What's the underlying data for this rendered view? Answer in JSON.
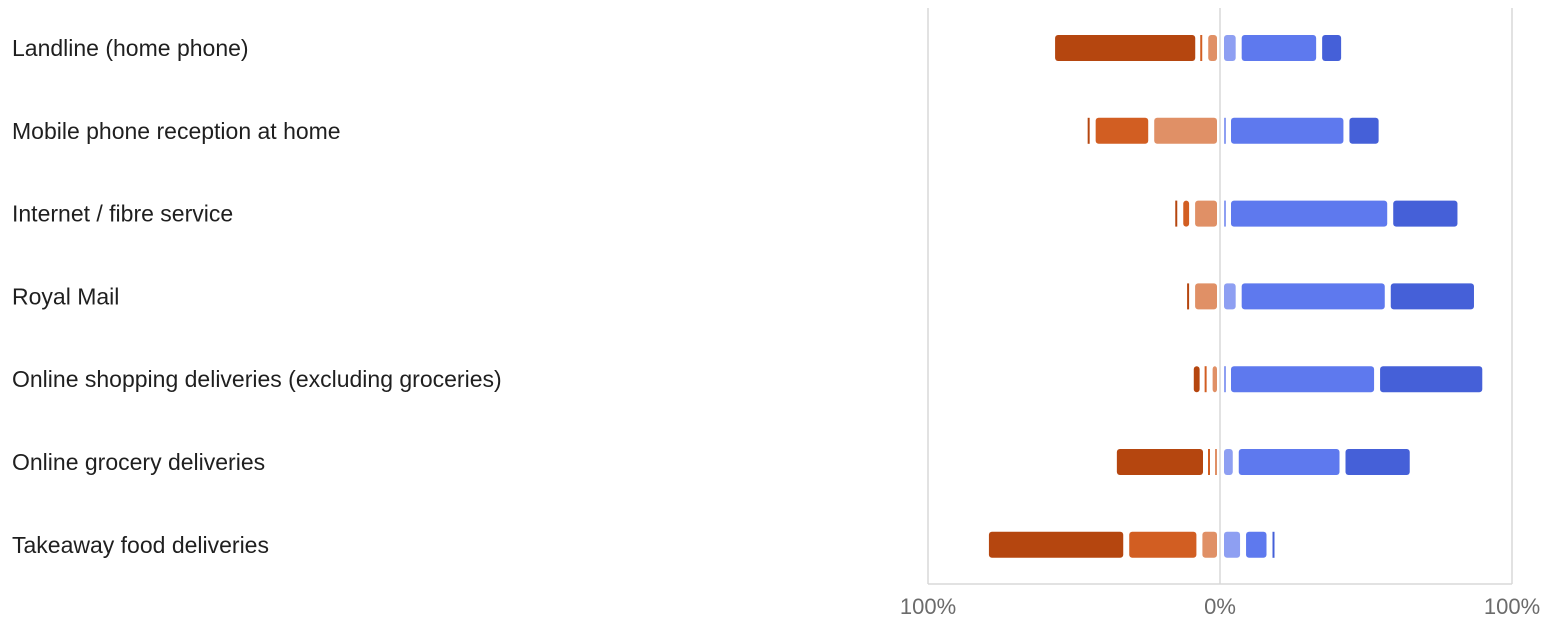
{
  "chart_data": {
    "type": "bar",
    "subtype": "diverging-stacked-horizontal",
    "title": "",
    "xlabel": "",
    "ylabel": "",
    "xlim": [
      -100,
      100
    ],
    "x_ticks": [
      {
        "value": -100,
        "label": "100%"
      },
      {
        "value": 0,
        "label": "0%"
      },
      {
        "value": 100,
        "label": "100%"
      }
    ],
    "grid": false,
    "legend": "none",
    "categories": [
      "Landline (home phone)",
      "Mobile phone reception at home",
      "Internet / fibre service",
      "Royal Mail",
      "Online shopping deliveries (excluding groceries)",
      "Online grocery deliveries",
      "Takeaway food deliveries"
    ],
    "negative_series": [
      {
        "color": "#b5460f",
        "values": [
          48,
          0.5,
          1,
          0.5,
          2,
          29.5,
          46
        ]
      },
      {
        "color": "#d25e22",
        "values": [
          0.5,
          18,
          2,
          0,
          0.5,
          0.5,
          23
        ]
      },
      {
        "color": "#e09066",
        "values": [
          3,
          21.5,
          7.5,
          7.5,
          1.5,
          1,
          5
        ]
      }
    ],
    "positive_series": [
      {
        "color": "#8e9ff2",
        "values": [
          4,
          0.5,
          0.5,
          4,
          1,
          3,
          5.5
        ]
      },
      {
        "color": "#5e79ee",
        "values": [
          25.5,
          38.5,
          53.5,
          49,
          49,
          34.5,
          7
        ]
      },
      {
        "color": "#4560d8",
        "values": [
          6.5,
          10,
          22,
          28.5,
          35,
          22,
          0.5
        ]
      }
    ]
  }
}
